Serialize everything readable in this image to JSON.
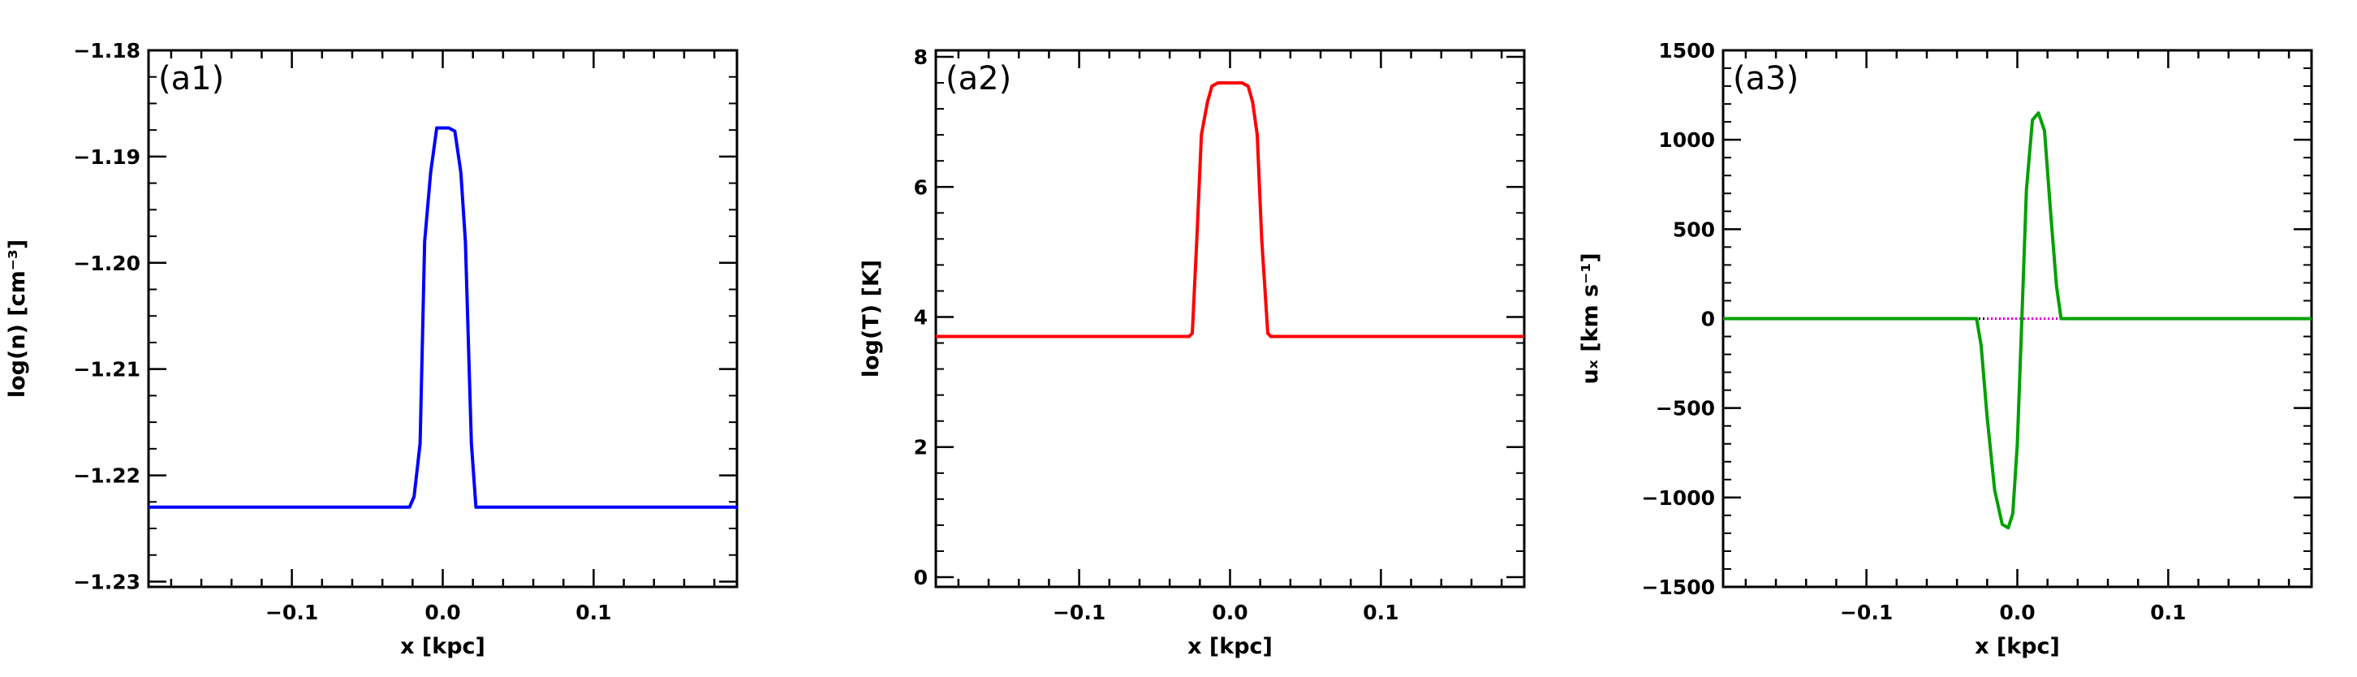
{
  "chart_data": [
    {
      "type": "line",
      "panel_label": "(a1)",
      "xlabel": "x [kpc]",
      "ylabel": "log(n) [cm⁻³]",
      "xlim": [
        -0.195,
        0.195
      ],
      "ylim": [
        -1.2305,
        -1.18
      ],
      "xticks": [
        -0.1,
        0.0,
        0.1
      ],
      "xtick_labels": [
        "−0.1",
        "0.0",
        "0.1"
      ],
      "yticks": [
        -1.23,
        -1.22,
        -1.21,
        -1.2,
        -1.19,
        -1.18
      ],
      "ytick_labels": [
        "−1.23",
        "−1.22",
        "−1.21",
        "−1.20",
        "−1.19",
        "−1.18"
      ],
      "grid": false,
      "series": [
        {
          "color": "#0000ff",
          "x": [
            -0.195,
            -0.022,
            -0.019,
            -0.015,
            -0.012,
            -0.008,
            -0.004,
            0.004,
            0.008,
            0.012,
            0.015,
            0.019,
            0.022,
            0.195
          ],
          "y": [
            -1.223,
            -1.223,
            -1.222,
            -1.217,
            -1.198,
            -1.1915,
            -1.1873,
            -1.1873,
            -1.1876,
            -1.1915,
            -1.198,
            -1.217,
            -1.223,
            -1.223
          ]
        }
      ]
    },
    {
      "type": "line",
      "panel_label": "(a2)",
      "xlabel": "x [kpc]",
      "ylabel": "log(T) [K]",
      "xlim": [
        -0.195,
        0.195
      ],
      "ylim": [
        -0.15,
        8.1
      ],
      "xticks": [
        -0.1,
        0.0,
        0.1
      ],
      "xtick_labels": [
        "−0.1",
        "0.0",
        "0.1"
      ],
      "yticks": [
        0,
        2,
        4,
        6,
        8
      ],
      "ytick_labels": [
        "0",
        "2",
        "4",
        "6",
        "8"
      ],
      "grid": false,
      "series": [
        {
          "color": "#ff0000",
          "x": [
            -0.195,
            -0.027,
            -0.025,
            -0.022,
            -0.019,
            -0.015,
            -0.012,
            -0.008,
            0.008,
            0.012,
            0.015,
            0.018,
            0.021,
            0.025,
            0.027,
            0.195
          ],
          "y": [
            3.7,
            3.7,
            3.75,
            5.2,
            6.8,
            7.3,
            7.55,
            7.6,
            7.6,
            7.55,
            7.3,
            6.8,
            5.2,
            3.75,
            3.7,
            3.7
          ]
        }
      ]
    },
    {
      "type": "line",
      "panel_label": "(a3)",
      "xlabel": "x [kpc]",
      "ylabel": "uₓ [km s⁻¹]",
      "xlim": [
        -0.195,
        0.195
      ],
      "ylim": [
        -1500,
        1500
      ],
      "xticks": [
        -0.1,
        0.0,
        0.1
      ],
      "xtick_labels": [
        "−0.1",
        "0.0",
        "0.1"
      ],
      "yticks": [
        -1500,
        -1000,
        -500,
        0,
        500,
        1000,
        1500
      ],
      "ytick_labels": [
        "−1500",
        "−1000",
        "−500",
        "0",
        "500",
        "1000",
        "1500"
      ],
      "grid": false,
      "series": [
        {
          "color": "#000000",
          "style": "dotted",
          "x": [
            -0.195,
            0.195
          ],
          "y": [
            0,
            0
          ]
        },
        {
          "color": "#ff00ff",
          "style": "dotted",
          "x": [
            -0.02,
            0.03
          ],
          "y": [
            0,
            0
          ]
        },
        {
          "color": "#00a000",
          "x": [
            -0.195,
            -0.027,
            -0.024,
            -0.02,
            -0.015,
            -0.01,
            -0.006,
            -0.003,
            0.0,
            0.003,
            0.006,
            0.01,
            0.014,
            0.018,
            0.022,
            0.026,
            0.029,
            0.195
          ],
          "y": [
            0,
            0,
            -150,
            -550,
            -960,
            -1150,
            -1170,
            -1090,
            -700,
            0,
            720,
            1110,
            1150,
            1050,
            600,
            180,
            0,
            0
          ]
        }
      ]
    }
  ]
}
